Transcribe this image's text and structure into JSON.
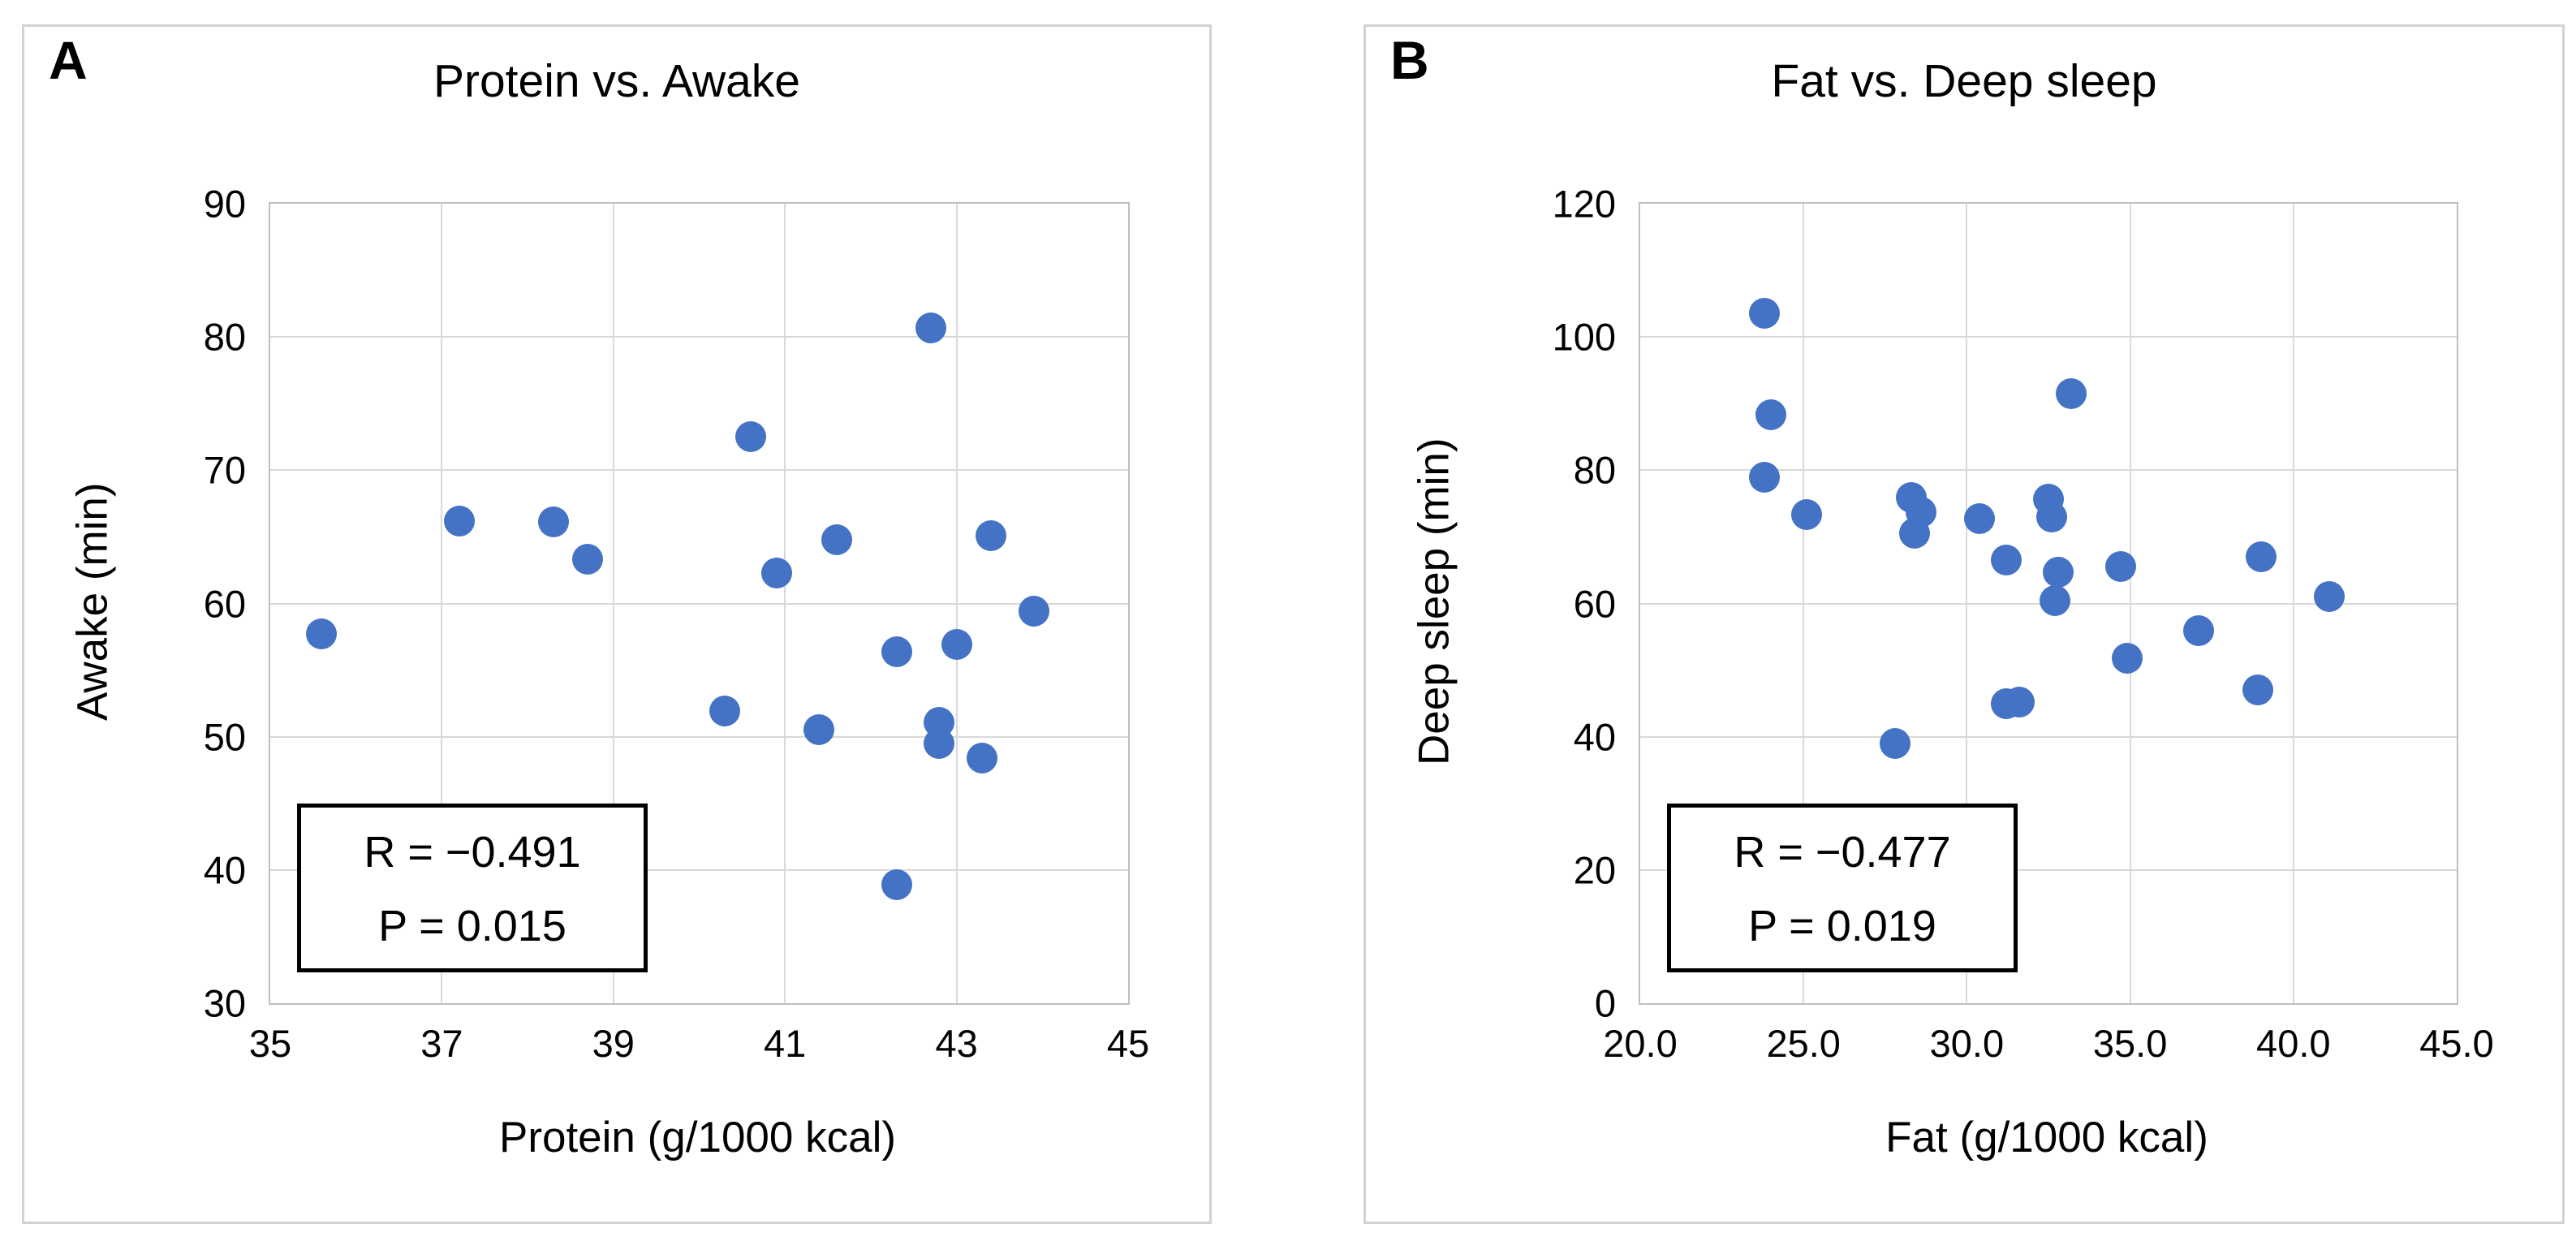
{
  "chart_data": [
    {
      "type": "scatter",
      "panel_label": "A",
      "title": "Protein vs. Awake",
      "xlabel": "Protein (g/1000 kcal)",
      "ylabel": "Awake (min)",
      "xlim": [
        35,
        45
      ],
      "ylim": [
        30,
        90
      ],
      "x_tick_labels": [
        "35",
        "37",
        "39",
        "41",
        "43",
        "45"
      ],
      "y_tick_labels": [
        "90",
        "80",
        "70",
        "60",
        "50",
        "40",
        "30"
      ],
      "grid": true,
      "legend_position": "none",
      "marker_color": "#4472C4",
      "annotation": {
        "lines": [
          "R = −0.491",
          "P = 0.015"
        ]
      },
      "points": [
        [
          35.6,
          57.7
        ],
        [
          37.2,
          66.2
        ],
        [
          38.3,
          66.1
        ],
        [
          38.7,
          63.3
        ],
        [
          40.3,
          51.9
        ],
        [
          40.6,
          72.5
        ],
        [
          40.9,
          62.3
        ],
        [
          41.4,
          50.5
        ],
        [
          41.6,
          64.8
        ],
        [
          42.3,
          56.4
        ],
        [
          42.3,
          38.9
        ],
        [
          42.7,
          80.7
        ],
        [
          42.8,
          51.1
        ],
        [
          42.8,
          49.5
        ],
        [
          43.0,
          56.9
        ],
        [
          43.3,
          48.4
        ],
        [
          43.4,
          65.1
        ],
        [
          43.9,
          59.4
        ]
      ]
    },
    {
      "type": "scatter",
      "panel_label": "B",
      "title": "Fat vs. Deep sleep",
      "xlabel": "Fat (g/1000 kcal)",
      "ylabel": "Deep sleep (min)",
      "xlim": [
        20,
        45
      ],
      "ylim": [
        0,
        120
      ],
      "x_tick_labels": [
        "20.0",
        "25.0",
        "30.0",
        "35.0",
        "40.0",
        "45.0"
      ],
      "y_tick_labels": [
        "120",
        "100",
        "80",
        "60",
        "40",
        "20",
        "0"
      ],
      "grid": true,
      "legend_position": "none",
      "marker_color": "#4472C4",
      "annotation": {
        "lines": [
          "R = −0.477",
          "P = 0.019"
        ]
      },
      "points": [
        [
          23.8,
          103.5
        ],
        [
          24.0,
          88.3
        ],
        [
          23.8,
          79.0
        ],
        [
          25.1,
          73.4
        ],
        [
          27.8,
          39.0
        ],
        [
          28.3,
          75.9
        ],
        [
          28.6,
          73.7
        ],
        [
          28.4,
          70.5
        ],
        [
          30.4,
          72.7
        ],
        [
          31.2,
          66.5
        ],
        [
          31.2,
          44.9
        ],
        [
          31.6,
          45.2
        ],
        [
          32.5,
          75.6
        ],
        [
          32.6,
          73.0
        ],
        [
          32.8,
          64.7
        ],
        [
          32.7,
          60.4
        ],
        [
          33.2,
          91.5
        ],
        [
          34.7,
          65.6
        ],
        [
          34.9,
          51.8
        ],
        [
          37.1,
          55.9
        ],
        [
          38.9,
          47.0
        ],
        [
          39.0,
          67.0
        ],
        [
          41.1,
          61.0
        ]
      ]
    }
  ]
}
